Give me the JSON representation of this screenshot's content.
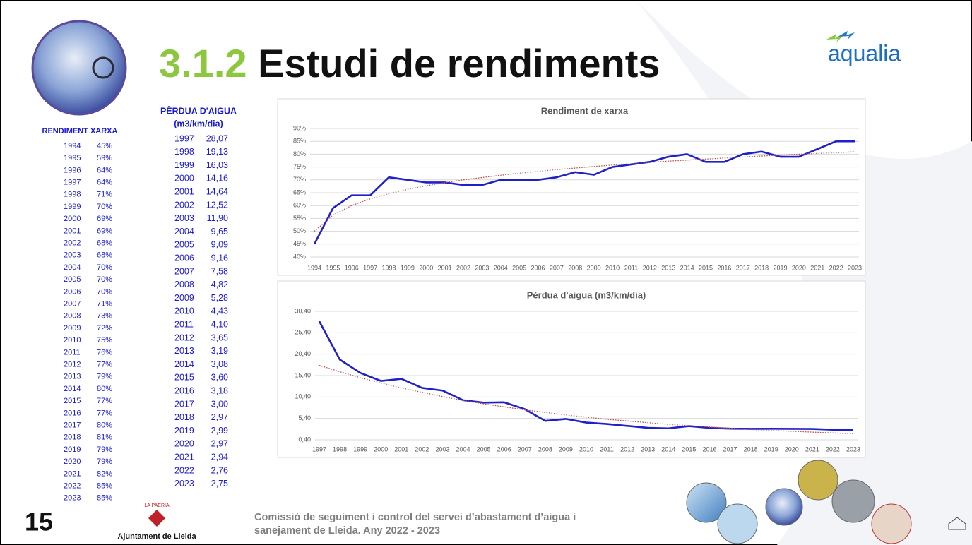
{
  "header": {
    "number": "3.1.2",
    "title": "Estudi de rendiments",
    "logo": "aqualia"
  },
  "table1": {
    "title": "RENDIMENT XARXA",
    "rows": [
      [
        "1994",
        "45%"
      ],
      [
        "1995",
        "59%"
      ],
      [
        "1996",
        "64%"
      ],
      [
        "1997",
        "64%"
      ],
      [
        "1998",
        "71%"
      ],
      [
        "1999",
        "70%"
      ],
      [
        "2000",
        "69%"
      ],
      [
        "2001",
        "69%"
      ],
      [
        "2002",
        "68%"
      ],
      [
        "2003",
        "68%"
      ],
      [
        "2004",
        "70%"
      ],
      [
        "2005",
        "70%"
      ],
      [
        "2006",
        "70%"
      ],
      [
        "2007",
        "71%"
      ],
      [
        "2008",
        "73%"
      ],
      [
        "2009",
        "72%"
      ],
      [
        "2010",
        "75%"
      ],
      [
        "2011",
        "76%"
      ],
      [
        "2012",
        "77%"
      ],
      [
        "2013",
        "79%"
      ],
      [
        "2014",
        "80%"
      ],
      [
        "2015",
        "77%"
      ],
      [
        "2016",
        "77%"
      ],
      [
        "2017",
        "80%"
      ],
      [
        "2018",
        "81%"
      ],
      [
        "2019",
        "79%"
      ],
      [
        "2020",
        "79%"
      ],
      [
        "2021",
        "82%"
      ],
      [
        "2022",
        "85%"
      ],
      [
        "2023",
        "85%"
      ]
    ]
  },
  "table2": {
    "title": [
      "PÈRDUA D'AIGUA",
      "(m3/km/dia)"
    ],
    "rows": [
      [
        "1997",
        "28,07"
      ],
      [
        "1998",
        "19,13"
      ],
      [
        "1999",
        "16,03"
      ],
      [
        "2000",
        "14,16"
      ],
      [
        "2001",
        "14,64"
      ],
      [
        "2002",
        "12,52"
      ],
      [
        "2003",
        "11,90"
      ],
      [
        "2004",
        "9,65"
      ],
      [
        "2005",
        "9,09"
      ],
      [
        "2006",
        "9,16"
      ],
      [
        "2007",
        "7,58"
      ],
      [
        "2008",
        "4,82"
      ],
      [
        "2009",
        "5,28"
      ],
      [
        "2010",
        "4,43"
      ],
      [
        "2011",
        "4,10"
      ],
      [
        "2012",
        "3,65"
      ],
      [
        "2013",
        "3,19"
      ],
      [
        "2014",
        "3,08"
      ],
      [
        "2015",
        "3,60"
      ],
      [
        "2016",
        "3,18"
      ],
      [
        "2017",
        "3,00"
      ],
      [
        "2018",
        "2,97"
      ],
      [
        "2019",
        "2,99"
      ],
      [
        "2020",
        "2,97"
      ],
      [
        "2021",
        "2,94"
      ],
      [
        "2022",
        "2,76"
      ],
      [
        "2023",
        "2,75"
      ]
    ]
  },
  "chart_data": [
    {
      "type": "line",
      "title": "Rendiment de xarxa",
      "categories": [
        "1994",
        "1995",
        "1996",
        "1997",
        "1998",
        "1999",
        "2000",
        "2001",
        "2002",
        "2003",
        "2004",
        "2005",
        "2006",
        "2007",
        "2008",
        "2009",
        "2010",
        "2011",
        "2012",
        "2013",
        "2014",
        "2015",
        "2016",
        "2017",
        "2018",
        "2019",
        "2020",
        "2021",
        "2022",
        "2023"
      ],
      "series": [
        {
          "color": "#2020c8",
          "values": [
            45,
            59,
            64,
            64,
            71,
            70,
            69,
            69,
            68,
            68,
            70,
            70,
            70,
            71,
            73,
            72,
            75,
            76,
            77,
            79,
            80,
            77,
            77,
            80,
            81,
            79,
            79,
            82,
            85,
            85
          ]
        },
        {
          "color": "#c0504d",
          "dash": "dotted",
          "values": [
            50,
            56.3,
            60,
            62.6,
            64.6,
            66.3,
            67.7,
            68.9,
            70,
            70.9,
            71.8,
            72.6,
            73.3,
            74,
            74.6,
            75.2,
            75.8,
            76.3,
            76.8,
            77.3,
            77.7,
            78.1,
            78.5,
            78.9,
            79.3,
            79.6,
            80,
            80.3,
            80.6,
            80.9
          ]
        }
      ],
      "ylim": [
        40,
        90
      ],
      "yticks": [
        {
          "value": 40,
          "label": "40%"
        },
        {
          "value": 45,
          "label": "45%"
        },
        {
          "value": 50,
          "label": "50%"
        },
        {
          "value": 55,
          "label": "55%"
        },
        {
          "value": 60,
          "label": "60%"
        },
        {
          "value": 65,
          "label": "65%"
        },
        {
          "value": 70,
          "label": "70%"
        },
        {
          "value": 75,
          "label": "75%"
        },
        {
          "value": 80,
          "label": "80%"
        },
        {
          "value": 85,
          "label": "85%"
        },
        {
          "value": 90,
          "label": "90%"
        }
      ],
      "grid": true
    },
    {
      "type": "line",
      "title": "Pèrdua d'aigua (m3/km/dia)",
      "categories": [
        "1997",
        "1998",
        "1999",
        "2000",
        "2001",
        "2002",
        "2003",
        "2004",
        "2005",
        "2006",
        "2007",
        "2008",
        "2009",
        "2010",
        "2011",
        "2012",
        "2013",
        "2014",
        "2015",
        "2016",
        "2017",
        "2018",
        "2019",
        "2020",
        "2021",
        "2022",
        "2023"
      ],
      "series": [
        {
          "color": "#2020c8",
          "values": [
            28.07,
            19.13,
            16.03,
            14.16,
            14.64,
            12.52,
            11.9,
            9.65,
            9.09,
            9.16,
            7.58,
            4.82,
            5.28,
            4.43,
            4.1,
            3.65,
            3.19,
            3.08,
            3.6,
            3.18,
            3.0,
            2.97,
            2.99,
            2.97,
            2.94,
            2.76,
            2.75
          ]
        },
        {
          "color": "#c0504d",
          "dash": "dotted",
          "values": [
            17.8,
            16.3,
            14.9,
            13.7,
            12.5,
            11.5,
            10.5,
            9.6,
            8.8,
            8.1,
            7.4,
            6.8,
            6.2,
            5.7,
            5.2,
            4.8,
            4.4,
            4.0,
            3.7,
            3.4,
            3.1,
            2.8,
            2.6,
            2.4,
            2.2,
            2.0,
            1.8
          ]
        }
      ],
      "ylim": [
        0.4,
        30.4
      ],
      "yticks": [
        {
          "value": 0.4,
          "label": "0,40"
        },
        {
          "value": 5.4,
          "label": "5,40"
        },
        {
          "value": 10.4,
          "label": "10,40"
        },
        {
          "value": 15.4,
          "label": "15,40"
        },
        {
          "value": 20.4,
          "label": "20,40"
        },
        {
          "value": 25.4,
          "label": "25,40"
        },
        {
          "value": 30.4,
          "label": "30,40"
        }
      ],
      "grid": true
    }
  ],
  "footer": {
    "page": "15",
    "org_top": "LA PAERIA",
    "org": "Ajuntament de Lleida",
    "text": [
      "Comissió de seguiment i control del servei d’abastament d’aigua i",
      "sanejament de Lleida. Any 2022 - 2023"
    ]
  }
}
